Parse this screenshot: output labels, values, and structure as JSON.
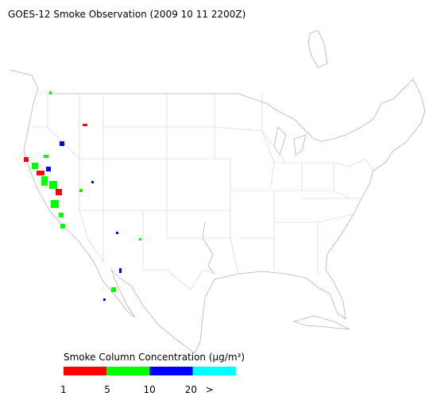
{
  "title": "GOES-12 Smoke Observation (2009 10 11  2200Z)",
  "legend": {
    "title": "Smoke Column Concentration (μg/m³)",
    "colors": [
      "#ff0000",
      "#00ff00",
      "#0000ff",
      "#00ffff"
    ],
    "ticks": [
      1,
      5,
      10,
      20,
      ">"
    ]
  }
}
